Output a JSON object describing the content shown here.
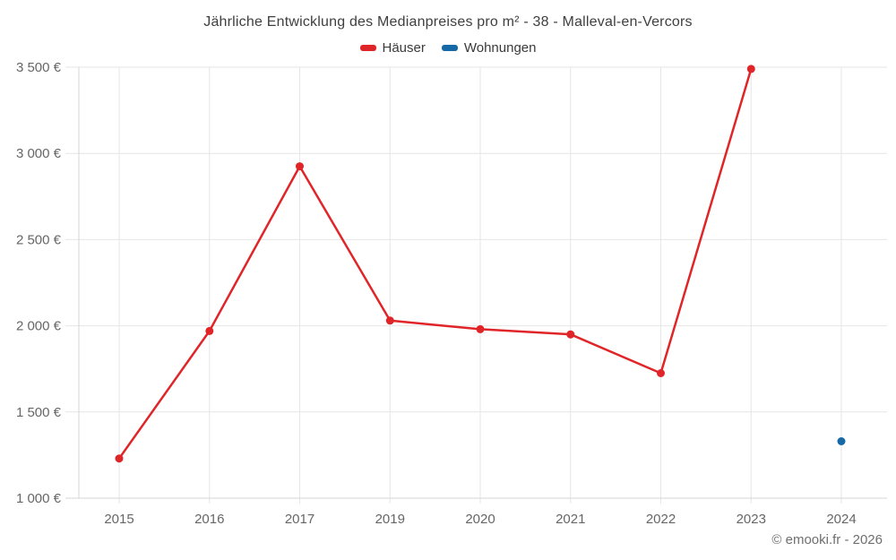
{
  "chart_data": {
    "type": "line",
    "title": "Jährliche Entwicklung des Medianpreises pro m² - 38 - Malleval-en-Vercors",
    "categories": [
      "2015",
      "2016",
      "2017",
      "2019",
      "2020",
      "2021",
      "2022",
      "2023",
      "2024"
    ],
    "series": [
      {
        "name": "Häuser",
        "color": "#e02529",
        "values": [
          1230,
          1970,
          2925,
          2030,
          1980,
          1950,
          1725,
          3490,
          null
        ]
      },
      {
        "name": "Wohnungen",
        "color": "#1469a6",
        "values": [
          null,
          null,
          null,
          null,
          null,
          null,
          null,
          null,
          1330
        ]
      }
    ],
    "ylim": [
      1000,
      3500
    ],
    "ytick_step": 500,
    "ytick_labels": [
      "1 000 €",
      "1 500 €",
      "2 000 €",
      "2 500 €",
      "3 000 €",
      "3 500 €"
    ],
    "xlabel": "",
    "ylabel": "",
    "grid": true,
    "legend_position": "top"
  },
  "colors": {
    "hauser": "#e02529",
    "wohnungen": "#1469a6",
    "gridline": "#e6e6e6",
    "axis_line": "#d6d6d6",
    "tick_label": "#666666",
    "title_text": "#3f3f3f",
    "footer_text": "#6f6f6f"
  },
  "footer": {
    "copyright": "© emooki.fr - 2026"
  }
}
